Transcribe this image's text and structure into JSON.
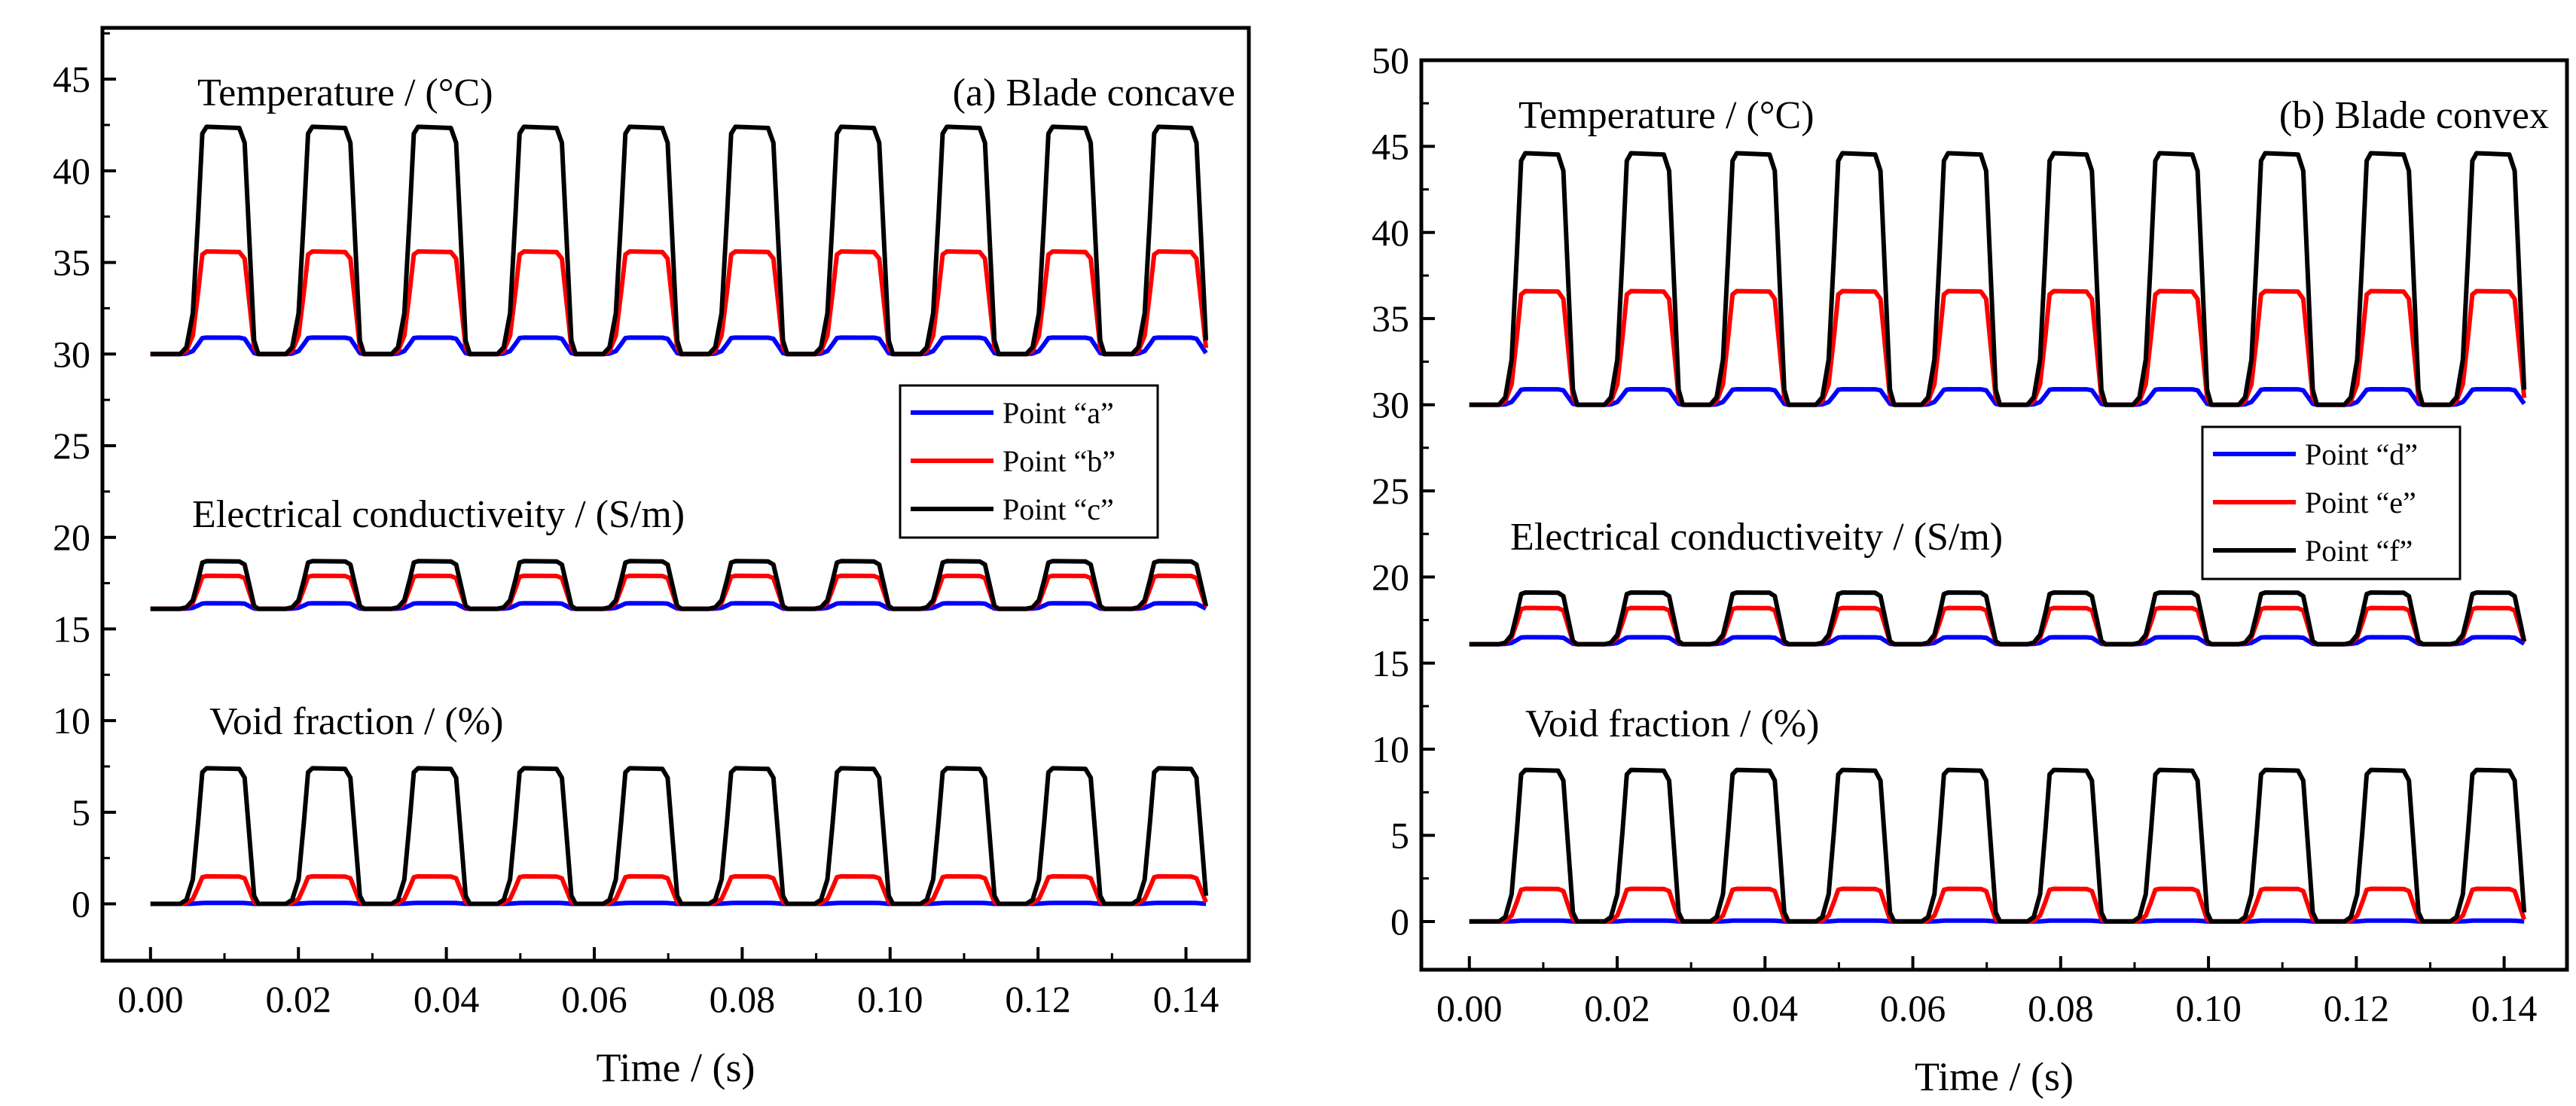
{
  "figure": {
    "panels": [
      {
        "panel_label": "(a) Blade concave",
        "annotations": [
          "Temperature / (°C)",
          "Electrical conductiveity / (S/m)",
          "Void fraction / (%)"
        ],
        "xlabel": "Time / (s)"
      },
      {
        "panel_label": "(b) Blade convex",
        "annotations": [
          "Temperature / (°C)",
          "Electrical conductiveity / (S/m)",
          "Void fraction / (%)"
        ],
        "xlabel": "Time / (s)"
      }
    ]
  },
  "chart_data": [
    {
      "type": "line",
      "title": "(a) Blade concave",
      "xlabel": "Time / (s)",
      "ylabel": "",
      "xlim": [
        -0.0065,
        0.1485
      ],
      "ylim": [
        -3.1,
        47.8
      ],
      "xticks": [
        0.0,
        0.02,
        0.04,
        0.06,
        0.08,
        0.1,
        0.12,
        0.14
      ],
      "xtick_labels": [
        "0.00",
        "0.02",
        "0.04",
        "0.06",
        "0.08",
        "0.10",
        "0.12",
        "0.14"
      ],
      "yticks": [
        0,
        5,
        10,
        15,
        20,
        25,
        30,
        35,
        40,
        45
      ],
      "ytick_labels": [
        "0",
        "5",
        "10",
        "15",
        "20",
        "25",
        "30",
        "35",
        "40",
        "45"
      ],
      "grid": false,
      "legend_position": "right",
      "period": 0.0143,
      "cycles": 10,
      "series": [
        {
          "name": "Point “a”",
          "color": "#0000ff",
          "quantity": "temperature",
          "baseline": 30,
          "plateau": 30.9
        },
        {
          "name": "Point “b”",
          "color": "#ff0000",
          "quantity": "temperature",
          "baseline": 30,
          "plateau": 35.6
        },
        {
          "name": "Point “c”",
          "color": "#000000",
          "quantity": "temperature",
          "baseline": 30,
          "plateau": 42.4
        },
        {
          "name": "Point “a”",
          "color": "#0000ff",
          "quantity": "electrical_conductivity",
          "baseline": 16.1,
          "plateau": 16.4
        },
        {
          "name": "Point “b”",
          "color": "#ff0000",
          "quantity": "electrical_conductivity",
          "baseline": 16.1,
          "plateau": 17.9
        },
        {
          "name": "Point “c”",
          "color": "#000000",
          "quantity": "electrical_conductivity",
          "baseline": 16.1,
          "plateau": 18.7
        },
        {
          "name": "Point “a”",
          "color": "#0000ff",
          "quantity": "void_fraction",
          "baseline": 0,
          "plateau": 0.05
        },
        {
          "name": "Point “b”",
          "color": "#ff0000",
          "quantity": "void_fraction",
          "baseline": 0,
          "plateau": 1.5
        },
        {
          "name": "Point “c”",
          "color": "#000000",
          "quantity": "void_fraction",
          "baseline": 0,
          "plateau": 7.4
        }
      ],
      "legend": [
        {
          "name": "Point “a”",
          "color": "#0000ff"
        },
        {
          "name": "Point “b”",
          "color": "#ff0000"
        },
        {
          "name": "Point “c”",
          "color": "#000000"
        }
      ]
    },
    {
      "type": "line",
      "title": "(b) Blade convex",
      "xlabel": "Time / (s)",
      "ylabel": "",
      "xlim": [
        -0.0065,
        0.1485
      ],
      "ylim": [
        -2.8,
        50
      ],
      "xticks": [
        0.0,
        0.02,
        0.04,
        0.06,
        0.08,
        0.1,
        0.12,
        0.14
      ],
      "xtick_labels": [
        "0.00",
        "0.02",
        "0.04",
        "0.06",
        "0.08",
        "0.10",
        "0.12",
        "0.14"
      ],
      "yticks": [
        0,
        5,
        10,
        15,
        20,
        25,
        30,
        35,
        40,
        45,
        50
      ],
      "ytick_labels": [
        "0",
        "5",
        "10",
        "15",
        "20",
        "25",
        "30",
        "35",
        "40",
        "45",
        "50"
      ],
      "grid": false,
      "legend_position": "right",
      "period": 0.0143,
      "cycles": 10,
      "series": [
        {
          "name": "Point “d”",
          "color": "#0000ff",
          "quantity": "temperature",
          "baseline": 30,
          "plateau": 30.9
        },
        {
          "name": "Point “e”",
          "color": "#ff0000",
          "quantity": "temperature",
          "baseline": 30,
          "plateau": 36.6
        },
        {
          "name": "Point “f”",
          "color": "#000000",
          "quantity": "temperature",
          "baseline": 30,
          "plateau": 44.6
        },
        {
          "name": "Point “d”",
          "color": "#0000ff",
          "quantity": "electrical_conductivity",
          "baseline": 16.1,
          "plateau": 16.5
        },
        {
          "name": "Point “e”",
          "color": "#ff0000",
          "quantity": "electrical_conductivity",
          "baseline": 16.1,
          "plateau": 18.2
        },
        {
          "name": "Point “f”",
          "color": "#000000",
          "quantity": "electrical_conductivity",
          "baseline": 16.1,
          "plateau": 19.1
        },
        {
          "name": "Point “d”",
          "color": "#0000ff",
          "quantity": "void_fraction",
          "baseline": 0,
          "plateau": 0.05
        },
        {
          "name": "Point “e”",
          "color": "#ff0000",
          "quantity": "void_fraction",
          "baseline": 0,
          "plateau": 1.9
        },
        {
          "name": "Point “f”",
          "color": "#000000",
          "quantity": "void_fraction",
          "baseline": 0,
          "plateau": 8.8
        }
      ],
      "legend": [
        {
          "name": "Point “d”",
          "color": "#0000ff"
        },
        {
          "name": "Point “e”",
          "color": "#ff0000"
        },
        {
          "name": "Point “f”",
          "color": "#000000"
        }
      ]
    }
  ]
}
